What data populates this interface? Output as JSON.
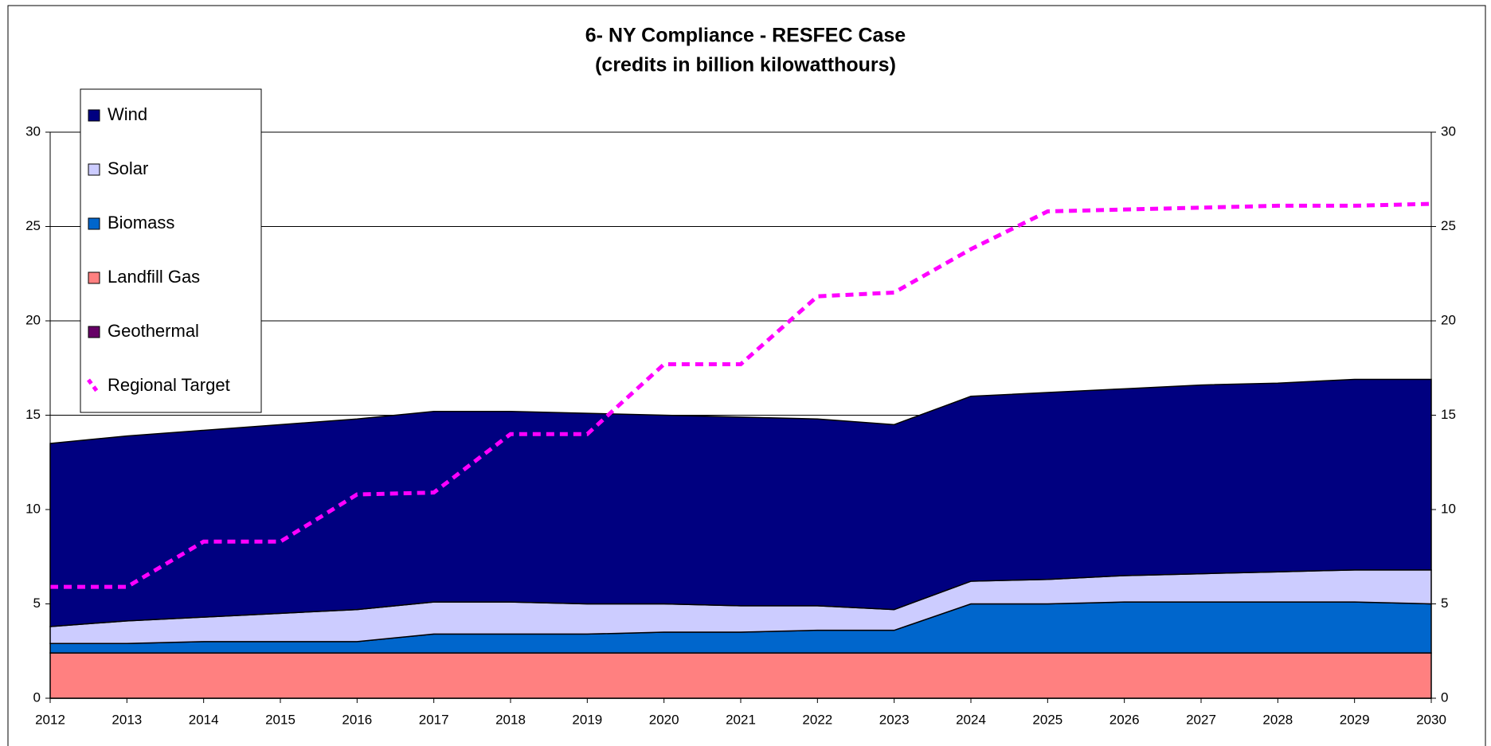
{
  "chart_data": {
    "type": "stacked_area",
    "title": "6- NY Compliance - RESFEC Case",
    "subtitle": "(credits in billion kilowatthours)",
    "x": [
      2012,
      2013,
      2014,
      2015,
      2016,
      2017,
      2018,
      2019,
      2020,
      2021,
      2022,
      2023,
      2024,
      2025,
      2026,
      2027,
      2028,
      2029,
      2030
    ],
    "xlim": [
      2012,
      2030
    ],
    "ylim": [
      0,
      30
    ],
    "yticks": [
      0,
      5,
      10,
      15,
      20,
      25,
      30
    ],
    "grid": true,
    "legend": "upper-left",
    "series": [
      {
        "name": "Wind",
        "color": "#000080",
        "values": [
          9.7,
          9.8,
          9.9,
          10.0,
          10.1,
          10.1,
          10.1,
          10.1,
          10.0,
          10.0,
          9.9,
          9.8,
          9.8,
          9.9,
          9.9,
          10.0,
          10.0,
          10.1,
          10.1
        ]
      },
      {
        "name": "Solar",
        "color": "#ccccff",
        "values": [
          0.9,
          1.2,
          1.3,
          1.5,
          1.7,
          1.7,
          1.7,
          1.6,
          1.5,
          1.4,
          1.3,
          1.1,
          1.2,
          1.3,
          1.4,
          1.5,
          1.6,
          1.7,
          1.8
        ]
      },
      {
        "name": "Biomass",
        "color": "#0066cc",
        "values": [
          0.5,
          0.5,
          0.6,
          0.6,
          0.6,
          1.0,
          1.0,
          1.0,
          1.1,
          1.1,
          1.2,
          1.2,
          2.6,
          2.6,
          2.7,
          2.7,
          2.7,
          2.7,
          2.6
        ]
      },
      {
        "name": "Landfill Gas",
        "color": "#ff8080",
        "values": [
          2.4,
          2.4,
          2.4,
          2.4,
          2.4,
          2.4,
          2.4,
          2.4,
          2.4,
          2.4,
          2.4,
          2.4,
          2.4,
          2.4,
          2.4,
          2.4,
          2.4,
          2.4,
          2.4
        ]
      },
      {
        "name": "Geothermal",
        "color": "#660066",
        "values": [
          0,
          0,
          0,
          0,
          0,
          0,
          0,
          0,
          0,
          0,
          0,
          0,
          0,
          0,
          0,
          0,
          0,
          0,
          0
        ]
      },
      {
        "name": "Regional Target",
        "color": "#ff00ff",
        "type": "line",
        "values": [
          5.9,
          5.9,
          8.3,
          8.3,
          10.8,
          10.9,
          14.0,
          14.0,
          17.7,
          17.7,
          21.3,
          21.5,
          23.8,
          25.8,
          25.9,
          26.0,
          26.1,
          26.1,
          26.2
        ]
      }
    ]
  }
}
